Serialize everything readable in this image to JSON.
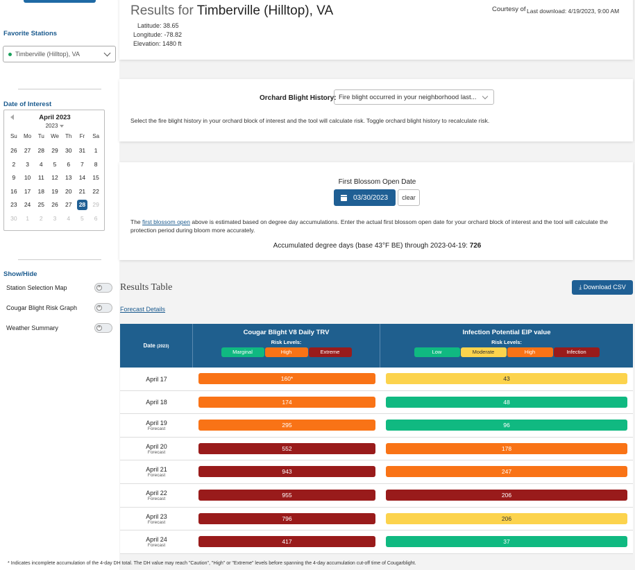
{
  "sidebar": {
    "favorite_stations_heading": "Favorite Stations",
    "station_value": "Timberville (Hilltop), VA",
    "date_of_interest_heading": "Date of Interest",
    "calendar": {
      "month_label": "April 2023",
      "year_label": "2023",
      "dow": [
        "Su",
        "Mo",
        "Tu",
        "We",
        "Th",
        "Fr",
        "Sa"
      ],
      "days": [
        {
          "n": "26",
          "m": false
        },
        {
          "n": "27",
          "m": false
        },
        {
          "n": "28",
          "m": false
        },
        {
          "n": "29",
          "m": false
        },
        {
          "n": "30",
          "m": false
        },
        {
          "n": "31",
          "m": false
        },
        {
          "n": "1",
          "m": false
        },
        {
          "n": "2",
          "m": false
        },
        {
          "n": "3",
          "m": false
        },
        {
          "n": "4",
          "m": false
        },
        {
          "n": "5",
          "m": false
        },
        {
          "n": "6",
          "m": false
        },
        {
          "n": "7",
          "m": false
        },
        {
          "n": "8",
          "m": false
        },
        {
          "n": "9",
          "m": false
        },
        {
          "n": "10",
          "m": false
        },
        {
          "n": "11",
          "m": false
        },
        {
          "n": "12",
          "m": false
        },
        {
          "n": "13",
          "m": false
        },
        {
          "n": "14",
          "m": false
        },
        {
          "n": "15",
          "m": false
        },
        {
          "n": "16",
          "m": false
        },
        {
          "n": "17",
          "m": false
        },
        {
          "n": "18",
          "m": false
        },
        {
          "n": "19",
          "m": false
        },
        {
          "n": "20",
          "m": false
        },
        {
          "n": "21",
          "m": false
        },
        {
          "n": "22",
          "m": false
        },
        {
          "n": "23",
          "m": false
        },
        {
          "n": "24",
          "m": false
        },
        {
          "n": "25",
          "m": false
        },
        {
          "n": "26",
          "m": false
        },
        {
          "n": "27",
          "m": false
        },
        {
          "n": "28",
          "m": false,
          "sel": true
        },
        {
          "n": "29",
          "m": true
        },
        {
          "n": "30",
          "m": true
        },
        {
          "n": "1",
          "m": true
        },
        {
          "n": "2",
          "m": true
        },
        {
          "n": "3",
          "m": true
        },
        {
          "n": "4",
          "m": true
        },
        {
          "n": "5",
          "m": true
        },
        {
          "n": "6",
          "m": true
        }
      ]
    },
    "show_hide_heading": "Show/Hide",
    "toggles": [
      {
        "label": "Station Selection Map",
        "on": false
      },
      {
        "label": "Cougar Blight Risk Graph",
        "on": false
      },
      {
        "label": "Weather Summary",
        "on": false
      }
    ]
  },
  "header": {
    "results_for_prefix": "Results for",
    "station_name": "Timberville (Hilltop), VA",
    "latitude": "Latitude: 38.65",
    "longitude": "Longitude: -78.82",
    "elevation": "Elevation: 1480 ft",
    "courtesy_of": "Courtesy of",
    "last_download": "Last download: 4/19/2023, 9:00 AM"
  },
  "history": {
    "label": "Orchard Blight History:",
    "selected": "Fire blight occurred in your neighborhood last...",
    "help": "Select the fire blight history in your orchard block of interest and the tool will calculate risk. Toggle orchard blight history to recalculate risk."
  },
  "blossom": {
    "title": "First Blossom Open Date",
    "date_value": "03/30/2023",
    "clear_label": "clear",
    "text_before": "The ",
    "link_text": "first blossom open",
    "text_after": " above is estimated based on degree day accumulations. Enter the actual first blossom open date for your orchard block of interest and the tool will calculate the protection period during bloom more accurately.",
    "accum_label": "Accumulated degree days (base 43°F BE) through 2023-04-19: ",
    "accum_value": "726"
  },
  "results": {
    "title": "Results Table",
    "download_label": "Download CSV",
    "forecast_link": "Forecast Details",
    "date_header": "Date",
    "date_header_year": "(2023)",
    "trv_header": "Cougar Blight V8 Daily TRV",
    "eip_header": "Infection Potential EIP value",
    "risk_levels_label": "Risk Levels:",
    "trv_levels": [
      {
        "label": "Marginal",
        "color": "#10b981"
      },
      {
        "label": "High",
        "color": "#f97316"
      },
      {
        "label": "Extreme",
        "color": "#991b1b"
      }
    ],
    "eip_levels": [
      {
        "label": "Low",
        "color": "#10b981"
      },
      {
        "label": "Moderate",
        "color": "#fcd34d",
        "dark": true
      },
      {
        "label": "High",
        "color": "#f97316"
      },
      {
        "label": "Infection",
        "color": "#991b1b"
      }
    ],
    "rows": [
      {
        "date": "April 17",
        "sub": "",
        "trv": "160*",
        "trv_color": "#f97316",
        "eip": "43",
        "eip_color": "#fcd34d"
      },
      {
        "date": "April 18",
        "sub": "",
        "trv": "174",
        "trv_color": "#f97316",
        "eip": "48",
        "eip_color": "#10b981"
      },
      {
        "date": "April 19",
        "sub": "Forecast",
        "trv": "295",
        "trv_color": "#f97316",
        "eip": "96",
        "eip_color": "#10b981"
      },
      {
        "date": "April 20",
        "sub": "Forecast",
        "trv": "552",
        "trv_color": "#991b1b",
        "eip": "178",
        "eip_color": "#f97316"
      },
      {
        "date": "April 21",
        "sub": "Forecast",
        "trv": "943",
        "trv_color": "#991b1b",
        "eip": "247",
        "eip_color": "#f97316"
      },
      {
        "date": "April 22",
        "sub": "Forecast",
        "trv": "955",
        "trv_color": "#991b1b",
        "eip": "206",
        "eip_color": "#991b1b"
      },
      {
        "date": "April 23",
        "sub": "Forecast",
        "trv": "796",
        "trv_color": "#991b1b",
        "eip": "206",
        "eip_color": "#fcd34d"
      },
      {
        "date": "April 24",
        "sub": "Forecast",
        "trv": "417",
        "trv_color": "#991b1b",
        "eip": "37",
        "eip_color": "#10b981"
      }
    ],
    "footnote": "* Indicates incomplete accumulation of the 4-day DH total. The DH value may reach \"Caution\", \"High\" or \"Extreme\" levels before spanning the 4-day accumulation cut-off time of Cougarblight."
  }
}
